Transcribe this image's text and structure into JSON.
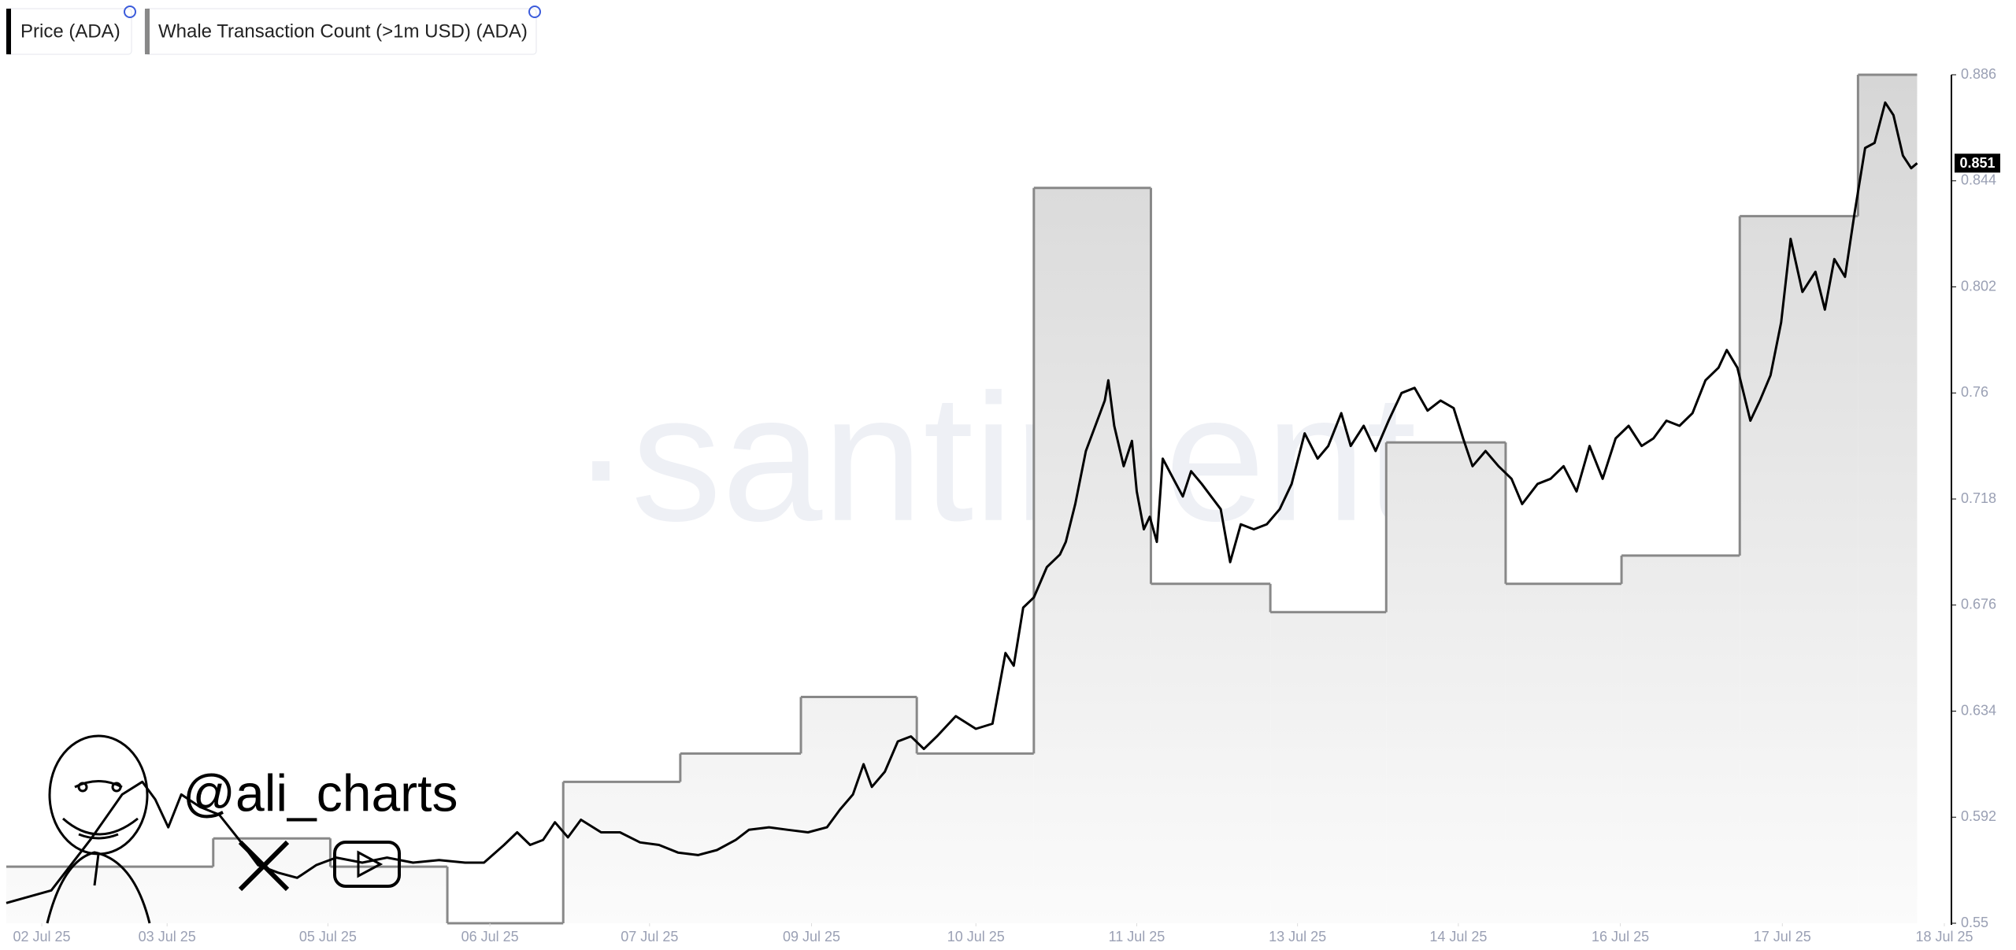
{
  "chart_data": {
    "type": "line",
    "watermark": "·santiment·",
    "overlay_text": "@ali_charts",
    "xlim": [
      0,
      16.45
    ],
    "xticks": [
      {
        "value": 0.3,
        "label": "02 Jul 25"
      },
      {
        "value": 1.36,
        "label": "03 Jul 25"
      },
      {
        "value": 2.72,
        "label": "05 Jul 25"
      },
      {
        "value": 4.09,
        "label": "06 Jul 25"
      },
      {
        "value": 5.44,
        "label": "07 Jul 25"
      },
      {
        "value": 6.81,
        "label": "09 Jul 25"
      },
      {
        "value": 8.2,
        "label": "10 Jul 25"
      },
      {
        "value": 9.56,
        "label": "11 Jul 25"
      },
      {
        "value": 10.92,
        "label": "13 Jul 25"
      },
      {
        "value": 12.28,
        "label": "14 Jul 25"
      },
      {
        "value": 13.65,
        "label": "16 Jul 25"
      },
      {
        "value": 15.02,
        "label": "17 Jul 25"
      },
      {
        "value": 16.39,
        "label": "18 Jul 25"
      }
    ],
    "ylim": [
      0.55,
      0.886
    ],
    "yticks": [
      0.55,
      0.592,
      0.634,
      0.676,
      0.718,
      0.76,
      0.802,
      0.844,
      0.886
    ],
    "y2lim": [
      0,
      30
    ],
    "series": [
      {
        "name": "Price (ADA)",
        "color": "#000000",
        "x": [
          0,
          0.38,
          0.71,
          0.98,
          1.15,
          1.26,
          1.37,
          1.48,
          1.64,
          1.8,
          1.97,
          2.13,
          2.3,
          2.46,
          2.62,
          2.79,
          3.01,
          3.22,
          3.44,
          3.66,
          3.88,
          4.04,
          4.21,
          4.32,
          4.43,
          4.54,
          4.64,
          4.75,
          4.86,
          5.03,
          5.19,
          5.36,
          5.52,
          5.68,
          5.85,
          6.01,
          6.17,
          6.28,
          6.45,
          6.61,
          6.78,
          6.94,
          7.05,
          7.16,
          7.25,
          7.32,
          7.43,
          7.54,
          7.65,
          7.76,
          7.87,
          8.03,
          8.2,
          8.34,
          8.45,
          8.52,
          8.6,
          8.69,
          8.8,
          8.91,
          8.96,
          9.04,
          9.13,
          9.21,
          9.29,
          9.32,
          9.37,
          9.45,
          9.52,
          9.56,
          9.62,
          9.67,
          9.73,
          9.78,
          9.87,
          9.95,
          10.02,
          10.11,
          10.19,
          10.27,
          10.35,
          10.44,
          10.55,
          10.66,
          10.77,
          10.87,
          10.98,
          11.09,
          11.18,
          11.29,
          11.37,
          11.48,
          11.58,
          11.69,
          11.8,
          11.91,
          12.02,
          12.13,
          12.24,
          12.32,
          12.4,
          12.51,
          12.62,
          12.73,
          12.82,
          12.95,
          13.06,
          13.17,
          13.28,
          13.39,
          13.5,
          13.61,
          13.72,
          13.83,
          13.93,
          14.04,
          14.15,
          14.26,
          14.37,
          14.48,
          14.55,
          14.64,
          14.75,
          14.83,
          14.92,
          15.01,
          15.09,
          15.19,
          15.3,
          15.38,
          15.46,
          15.55,
          15.63,
          15.72,
          15.8,
          15.89,
          15.96,
          16.04,
          16.11,
          16.16
        ],
        "values": [
          0.558,
          0.563,
          0.583,
          0.601,
          0.606,
          0.599,
          0.588,
          0.601,
          0.596,
          0.593,
          0.583,
          0.573,
          0.57,
          0.568,
          0.573,
          0.576,
          0.574,
          0.576,
          0.574,
          0.575,
          0.574,
          0.574,
          0.581,
          0.586,
          0.581,
          0.583,
          0.59,
          0.584,
          0.591,
          0.586,
          0.586,
          0.582,
          0.581,
          0.578,
          0.577,
          0.579,
          0.583,
          0.587,
          0.588,
          0.587,
          0.586,
          0.588,
          0.595,
          0.601,
          0.613,
          0.604,
          0.61,
          0.622,
          0.624,
          0.619,
          0.624,
          0.632,
          0.627,
          0.629,
          0.657,
          0.652,
          0.675,
          0.679,
          0.691,
          0.696,
          0.701,
          0.716,
          0.737,
          0.747,
          0.757,
          0.765,
          0.747,
          0.731,
          0.741,
          0.721,
          0.706,
          0.711,
          0.701,
          0.734,
          0.726,
          0.719,
          0.729,
          0.724,
          0.719,
          0.714,
          0.693,
          0.708,
          0.706,
          0.708,
          0.714,
          0.724,
          0.744,
          0.734,
          0.739,
          0.752,
          0.739,
          0.747,
          0.737,
          0.749,
          0.76,
          0.762,
          0.753,
          0.757,
          0.754,
          0.742,
          0.731,
          0.737,
          0.731,
          0.726,
          0.716,
          0.724,
          0.726,
          0.731,
          0.721,
          0.739,
          0.726,
          0.742,
          0.747,
          0.739,
          0.742,
          0.749,
          0.747,
          0.752,
          0.765,
          0.77,
          0.777,
          0.77,
          0.749,
          0.757,
          0.767,
          0.788,
          0.821,
          0.8,
          0.808,
          0.793,
          0.813,
          0.806,
          0.831,
          0.857,
          0.859,
          0.875,
          0.87,
          0.854,
          0.849,
          0.851
        ]
      },
      {
        "name": "Whale Transaction Count (>1m USD) (ADA)",
        "color": "#888888",
        "axis": "y2",
        "x": [
          0,
          1.75,
          2.74,
          3.73,
          4.71,
          5.7,
          6.72,
          7.7,
          8.69,
          9.68,
          10.69,
          11.67,
          12.68,
          13.66,
          14.66,
          15.66
        ],
        "values": [
          2,
          3,
          2,
          0,
          5,
          6,
          8,
          6,
          26,
          12,
          11,
          17,
          12,
          13,
          25,
          30
        ]
      }
    ]
  }
}
